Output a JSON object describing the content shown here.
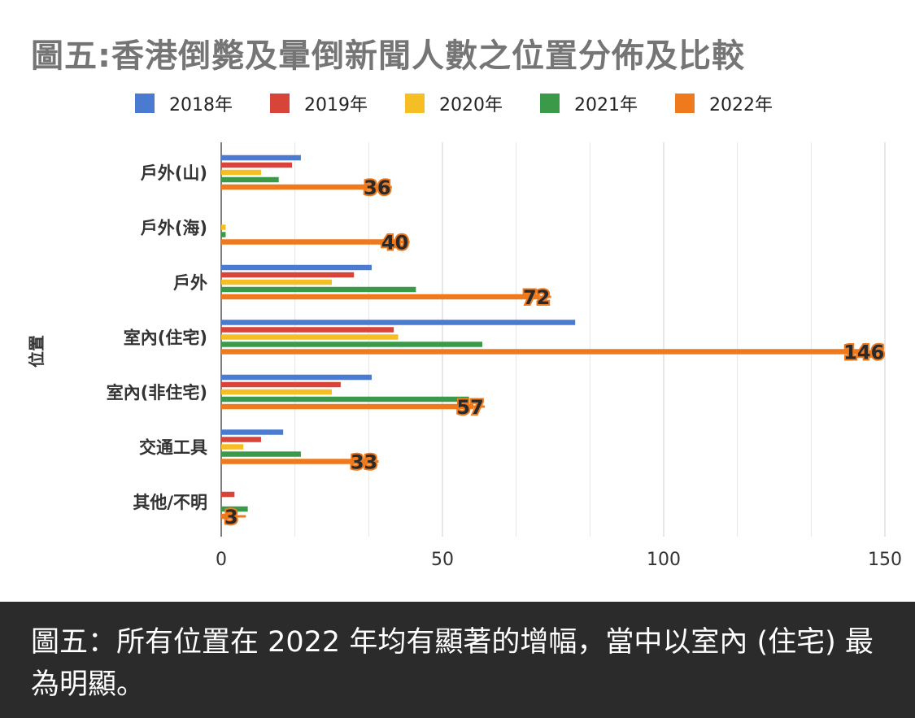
{
  "chart_data": {
    "type": "bar",
    "orientation": "horizontal",
    "title": "圖五:香港倒斃及暈倒新聞人數之位置分佈及比較",
    "ylabel": "位置",
    "xlabel": "",
    "categories": [
      "戶外(山)",
      "戶外(海)",
      "戶外",
      "室內(住宅)",
      "室內(非住宅)",
      "交通工具",
      "其他/不明"
    ],
    "series": [
      {
        "name": "2018年",
        "color": "#4a7bd0",
        "values": [
          18,
          0,
          34,
          80,
          34,
          14,
          0
        ]
      },
      {
        "name": "2019年",
        "color": "#d9443a",
        "values": [
          16,
          0,
          30,
          39,
          27,
          9,
          3
        ]
      },
      {
        "name": "2020年",
        "color": "#f5be22",
        "values": [
          9,
          1,
          25,
          40,
          25,
          5,
          0
        ]
      },
      {
        "name": "2021年",
        "color": "#3a9a4a",
        "values": [
          13,
          1,
          44,
          59,
          56,
          18,
          6
        ]
      },
      {
        "name": "2022年",
        "color": "#ef7a1e",
        "values": [
          36,
          40,
          72,
          146,
          57,
          33,
          3
        ]
      }
    ],
    "data_labels_series": "2022年",
    "xlim": [
      0,
      150
    ],
    "xticks": [
      "0",
      "50",
      "100",
      "150"
    ],
    "minor_gridlines": true,
    "legend_position": "top"
  },
  "caption": {
    "text": "圖五：所有位置在 2022 年均有顯著的增幅，當中以室內 (住宅) 最為明顯。"
  }
}
